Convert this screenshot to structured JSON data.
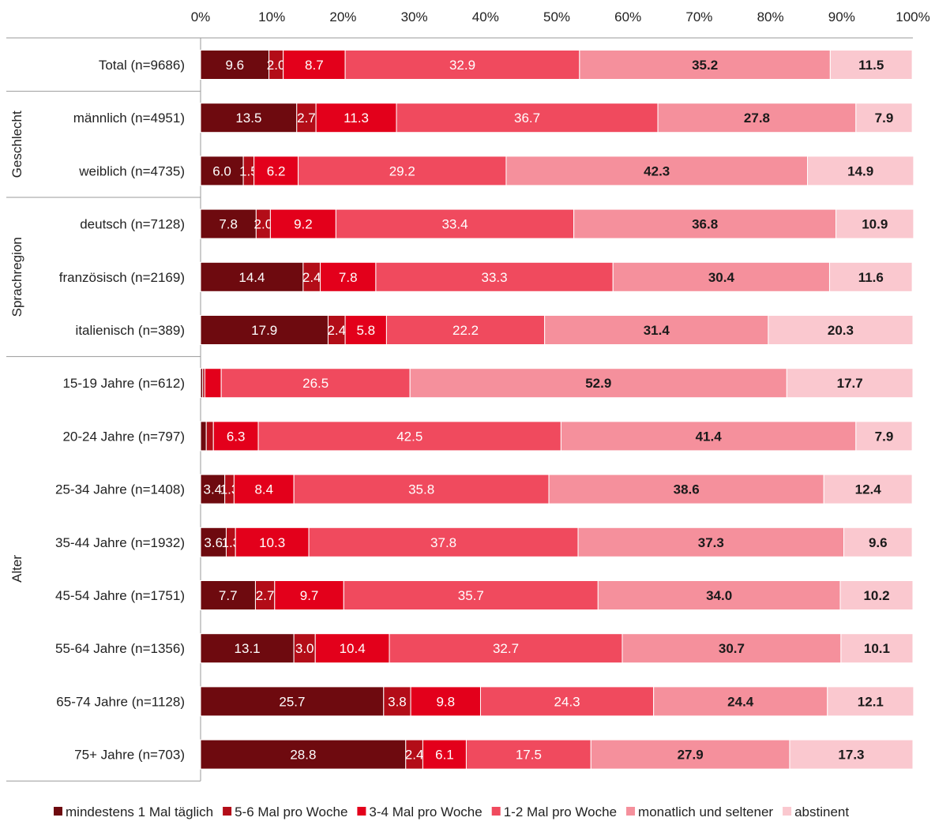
{
  "chart_data": {
    "type": "bar",
    "orientation": "horizontal",
    "stacked": "percent",
    "xlim": [
      0,
      100
    ],
    "x_ticks": [
      "0%",
      "10%",
      "20%",
      "30%",
      "40%",
      "50%",
      "60%",
      "70%",
      "80%",
      "90%",
      "100%"
    ],
    "legend_position": "bottom",
    "categories": [
      "Total (n=9686)",
      "männlich (n=4951)",
      "weiblich (n=4735)",
      "deutsch (n=7128)",
      "französisch (n=2169)",
      "italienisch (n=389)",
      "15-19 Jahre (n=612)",
      "20-24 Jahre (n=797)",
      "25-34 Jahre (n=1408)",
      "35-44 Jahre (n=1932)",
      "45-54 Jahre (n=1751)",
      "55-64 Jahre (n=1356)",
      "65-74 Jahre (n=1128)",
      "75+ Jahre (n=703)"
    ],
    "groups": [
      {
        "name": "Geschlecht",
        "from": 1,
        "to": 2
      },
      {
        "name": "Sprachregion",
        "from": 3,
        "to": 5
      },
      {
        "name": "Alter",
        "from": 6,
        "to": 13
      }
    ],
    "series": [
      {
        "name": "mindestens 1 Mal täglich",
        "color": "#6e0a0f",
        "label_color": "#ffffff",
        "values": [
          9.6,
          13.5,
          6.0,
          7.8,
          14.4,
          17.9,
          0.3,
          0.8,
          3.4,
          3.6,
          7.7,
          13.1,
          25.7,
          28.8
        ],
        "labels": [
          "9.6",
          "13.5",
          "6.0",
          "7.8",
          "14.4",
          "17.9",
          "",
          "",
          "3.4",
          "3.6",
          "7.7",
          "13.1",
          "25.7",
          "28.8"
        ]
      },
      {
        "name": "5-6 Mal pro Woche",
        "color": "#b30d18",
        "label_color": "#ffffff",
        "values": [
          2.0,
          2.7,
          1.5,
          2.0,
          2.4,
          2.4,
          0.3,
          1.0,
          1.3,
          1.3,
          2.7,
          3.0,
          3.8,
          2.4
        ],
        "labels": [
          "2.0",
          "2.7",
          "1.5",
          "2.0",
          "2.4",
          "2.4",
          "",
          "",
          "1.3",
          "1.3",
          "2.7",
          "3.0",
          "3.8",
          "2.4"
        ]
      },
      {
        "name": "3-4 Mal pro Woche",
        "color": "#e3001b",
        "label_color": "#ffffff",
        "values": [
          8.7,
          11.3,
          6.2,
          9.2,
          7.8,
          5.8,
          2.3,
          6.3,
          8.4,
          10.3,
          9.7,
          10.4,
          9.8,
          6.1
        ],
        "labels": [
          "8.7",
          "11.3",
          "6.2",
          "9.2",
          "7.8",
          "5.8",
          "",
          "6.3",
          "8.4",
          "10.3",
          "9.7",
          "10.4",
          "9.8",
          "6.1"
        ]
      },
      {
        "name": "1-2 Mal pro Woche",
        "color": "#f04a5e",
        "label_color": "#ffffff",
        "values": [
          32.9,
          36.7,
          29.2,
          33.4,
          33.3,
          22.2,
          26.5,
          42.5,
          35.8,
          37.8,
          35.7,
          32.7,
          24.3,
          17.5
        ],
        "labels": [
          "32.9",
          "36.7",
          "29.2",
          "33.4",
          "33.3",
          "22.2",
          "26.5",
          "42.5",
          "35.8",
          "37.8",
          "35.7",
          "32.7",
          "24.3",
          "17.5"
        ]
      },
      {
        "name": "monatlich und seltener",
        "color": "#f5909c",
        "label_color": "#1a1a1a",
        "values": [
          35.2,
          27.8,
          42.3,
          36.8,
          30.4,
          31.4,
          52.9,
          41.4,
          38.6,
          37.3,
          34.0,
          30.7,
          24.4,
          27.9
        ],
        "labels": [
          "35.2",
          "27.8",
          "42.3",
          "36.8",
          "30.4",
          "31.4",
          "52.9",
          "41.4",
          "38.6",
          "37.3",
          "34.0",
          "30.7",
          "24.4",
          "27.9"
        ]
      },
      {
        "name": "abstinent",
        "color": "#fac8cf",
        "label_color": "#1a1a1a",
        "values": [
          11.5,
          7.9,
          14.9,
          10.9,
          11.6,
          20.3,
          17.7,
          7.9,
          12.4,
          9.6,
          10.2,
          10.1,
          12.1,
          17.3
        ],
        "labels": [
          "11.5",
          "7.9",
          "14.9",
          "10.9",
          "11.6",
          "20.3",
          "17.7",
          "7.9",
          "12.4",
          "9.6",
          "10.2",
          "10.1",
          "12.1",
          "17.3"
        ]
      }
    ]
  }
}
